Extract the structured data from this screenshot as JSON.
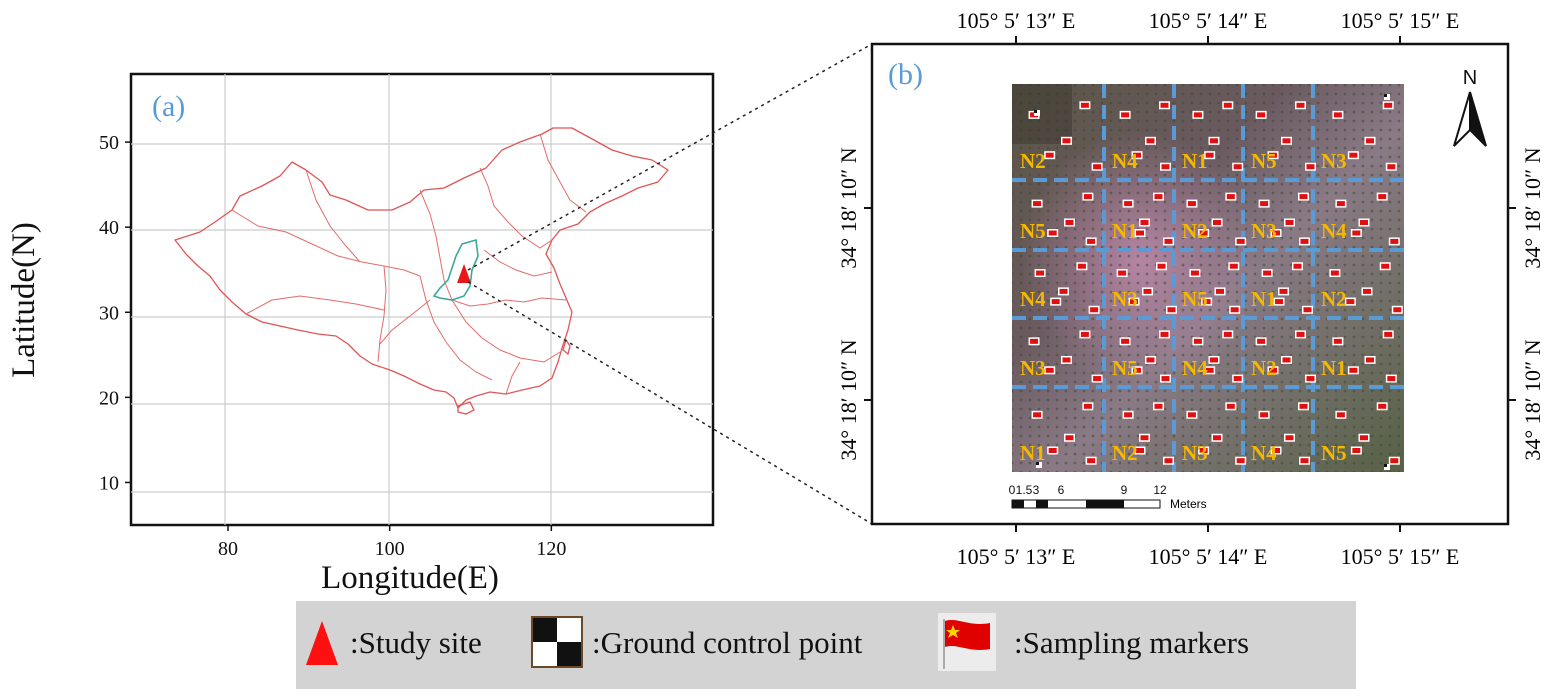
{
  "panel_a": {
    "label": "(a)",
    "x_axis_label": "Longitude(E)",
    "y_axis_label": "Latitude(N)",
    "x_ticks": [
      "80",
      "100",
      "120"
    ],
    "y_ticks": [
      "50",
      "40",
      "30",
      "20",
      "10"
    ],
    "x_range": [
      68,
      140
    ],
    "y_range": [
      5,
      58
    ],
    "study_site_lon": 109.2,
    "study_site_lat": 34.5
  },
  "panel_b": {
    "label": "(b)",
    "north_label": "N",
    "top_ticks": [
      "105° 5′ 13″ E",
      "105° 5′ 14″ E",
      "105° 5′ 15″ E"
    ],
    "bottom_ticks": [
      "105° 5′ 13″ E",
      "105° 5′ 14″ E",
      "105° 5′ 15″ E"
    ],
    "left_ticks": [
      "34° 18′ 10″ N",
      "34° 18′ 10″ N"
    ],
    "right_ticks": [
      "34° 18′ 10″ N",
      "34° 18′ 10″ N"
    ],
    "scale_ticks": [
      "0",
      "1.5",
      "3",
      "6",
      "9",
      "12"
    ],
    "scale_unit": "Meters",
    "plot_grid": [
      [
        "N2",
        "N4",
        "N1",
        "N5",
        "N3"
      ],
      [
        "N5",
        "N1",
        "N2",
        "N3",
        "N4"
      ],
      [
        "N4",
        "N3",
        "N5",
        "N1",
        "N2"
      ],
      [
        "N3",
        "N5",
        "N4",
        "N2",
        "N1"
      ],
      [
        "N1",
        "N2",
        "N3",
        "N4",
        "N5"
      ]
    ]
  },
  "legend": {
    "study_site": ":Study site",
    "ground_control": ":Ground control point",
    "sampling_markers": ":Sampling markers"
  },
  "colors": {
    "label_blue": "#5b9bd5",
    "grid_line_blue": "#5b9bd5",
    "treatment_yellow": "#f5b800",
    "border_red": "#e05050",
    "province_teal": "#3aa89a",
    "site_red": "#e81818",
    "legend_bg": "#d3d3d3"
  }
}
